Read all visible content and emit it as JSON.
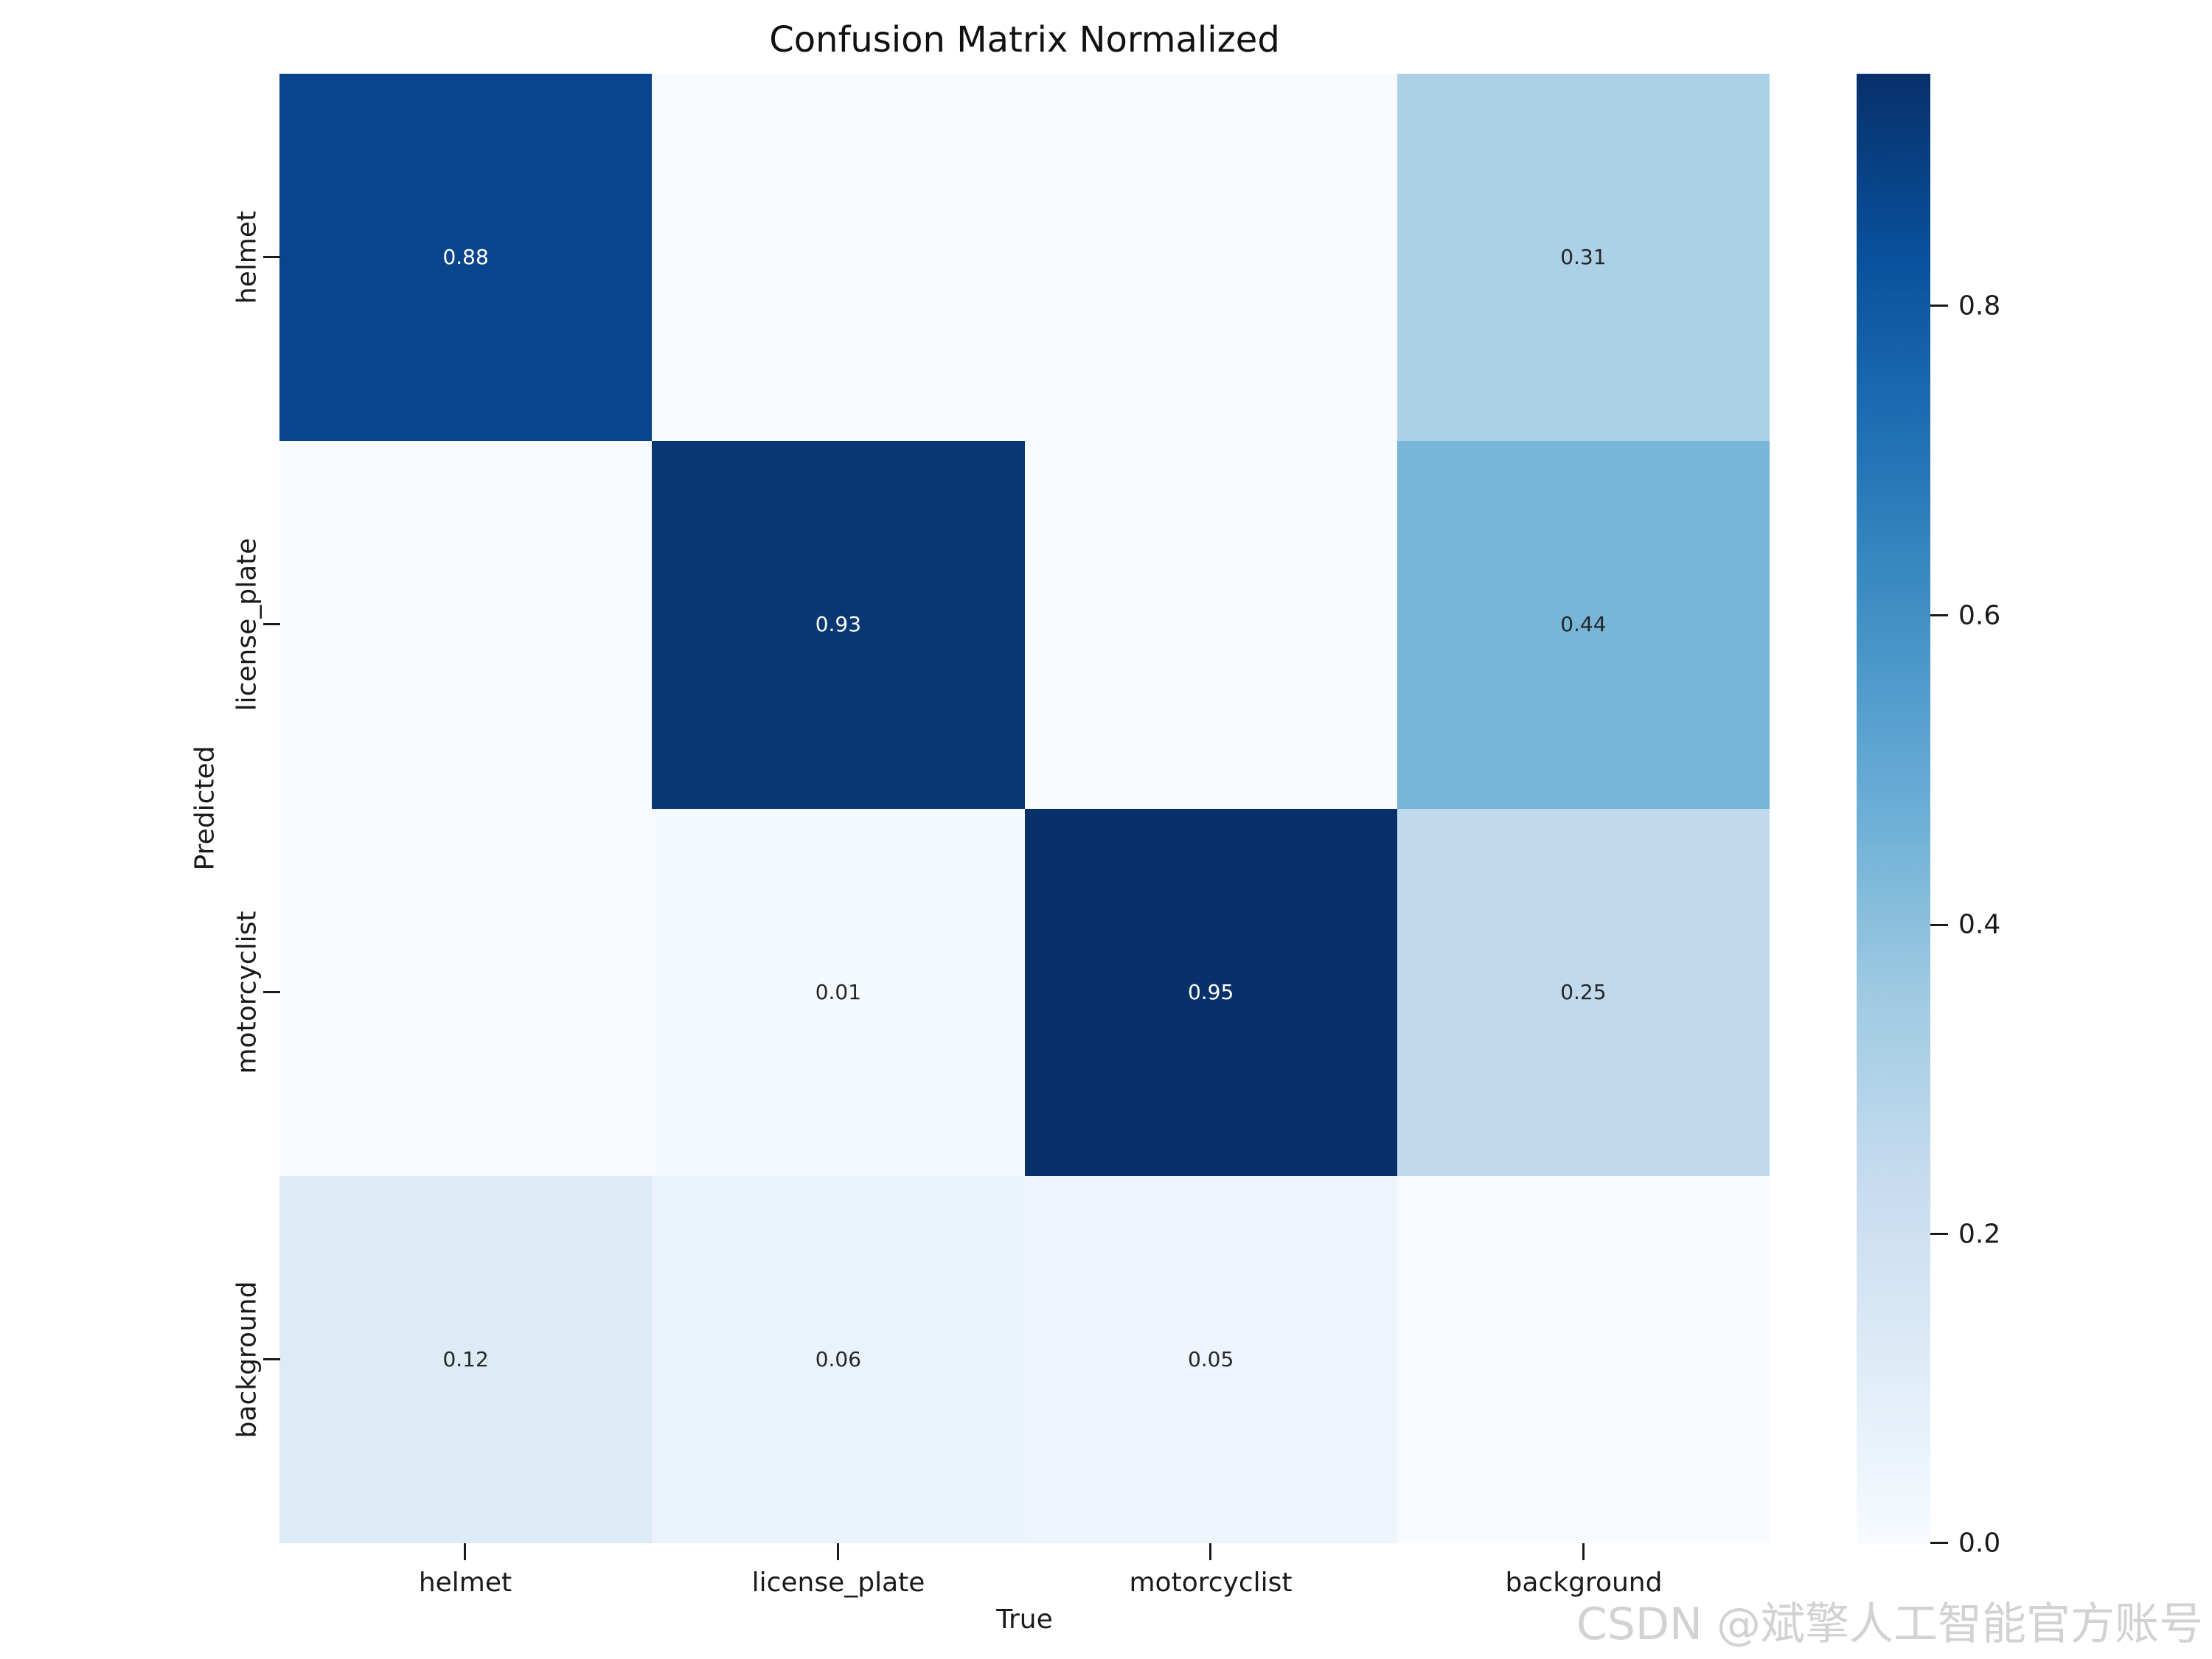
{
  "title": "Confusion Matrix Normalized",
  "watermark": "CSDN @斌擎人工智能官方账号",
  "chart_data": {
    "type": "heatmap",
    "title": "Confusion Matrix Normalized",
    "xlabel": "True",
    "ylabel": "Predicted",
    "x_categories": [
      "helmet",
      "license_plate",
      "motorcyclist",
      "background"
    ],
    "y_categories": [
      "helmet",
      "license_plate",
      "motorcyclist",
      "background"
    ],
    "values": [
      [
        0.88,
        0.0,
        0.0,
        0.31
      ],
      [
        0.0,
        0.93,
        0.0,
        0.44
      ],
      [
        0.0,
        0.01,
        0.95,
        0.25
      ],
      [
        0.12,
        0.06,
        0.05,
        0.0
      ]
    ],
    "annotations": [
      [
        "0.88",
        "",
        "",
        "0.31"
      ],
      [
        "",
        "0.93",
        "",
        "0.44"
      ],
      [
        "",
        "0.01",
        "0.95",
        "0.25"
      ],
      [
        "0.12",
        "0.06",
        "0.05",
        ""
      ]
    ],
    "cell_colors": [
      [
        "#09458c",
        "#f7fbff",
        "#f7fbff",
        "#acd0e6"
      ],
      [
        "#f7fbff",
        "#093773",
        "#f7fbff",
        "#77b5d9"
      ],
      [
        "#f7fbff",
        "#f5fafe",
        "#08306b",
        "#c1d9ed"
      ],
      [
        "#ddebf7",
        "#eaf3fb",
        "#edf4fc",
        "#f7fbff"
      ]
    ],
    "text_colors": [
      [
        "#ffffff",
        "#262626",
        "#262626",
        "#262626"
      ],
      [
        "#262626",
        "#ffffff",
        "#262626",
        "#262626"
      ],
      [
        "#262626",
        "#262626",
        "#ffffff",
        "#262626"
      ],
      [
        "#262626",
        "#262626",
        "#262626",
        "#262626"
      ]
    ],
    "colormap": "Blues",
    "colormap_anchors": [
      "#f7fbff",
      "#deebf7",
      "#c6dbef",
      "#9ecae1",
      "#6baed6",
      "#4292c6",
      "#2171b5",
      "#08519c",
      "#08306b"
    ],
    "vmin": 0.0,
    "vmax": 0.95,
    "colorbar_ticks": [
      {
        "label": "0.8"
      },
      {
        "label": "0.6"
      },
      {
        "label": "0.4"
      },
      {
        "label": "0.2"
      },
      {
        "label": "0.0"
      }
    ],
    "grid": false,
    "legend_position": "none"
  }
}
